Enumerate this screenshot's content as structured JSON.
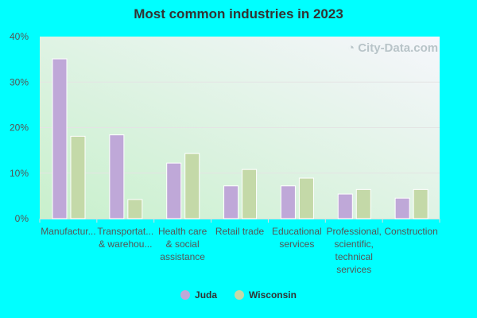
{
  "chart_data": {
    "type": "bar",
    "title": "Most common industries in 2023",
    "categories": [
      [
        "Manufactur..."
      ],
      [
        "Transportat...",
        "& warehou..."
      ],
      [
        "Health care",
        "& social",
        "assistance"
      ],
      [
        "Retail trade"
      ],
      [
        "Educational",
        "services"
      ],
      [
        "Professional,",
        "scientific,",
        "technical",
        "services"
      ],
      [
        "Construction"
      ]
    ],
    "series": [
      {
        "name": "Juda",
        "color": "#bfa8d8",
        "values": [
          35.1,
          18.4,
          12.2,
          7.2,
          7.2,
          5.4,
          4.5
        ]
      },
      {
        "name": "Wisconsin",
        "color": "#c4d9a8",
        "values": [
          18.1,
          4.2,
          14.3,
          10.8,
          8.9,
          6.4,
          6.4
        ]
      }
    ],
    "yticks": [
      "0%",
      "10%",
      "20%",
      "30%",
      "40%"
    ],
    "ylim": [
      0,
      40
    ],
    "grid": true,
    "legend": "bottom",
    "watermark": "City-Data.com"
  }
}
